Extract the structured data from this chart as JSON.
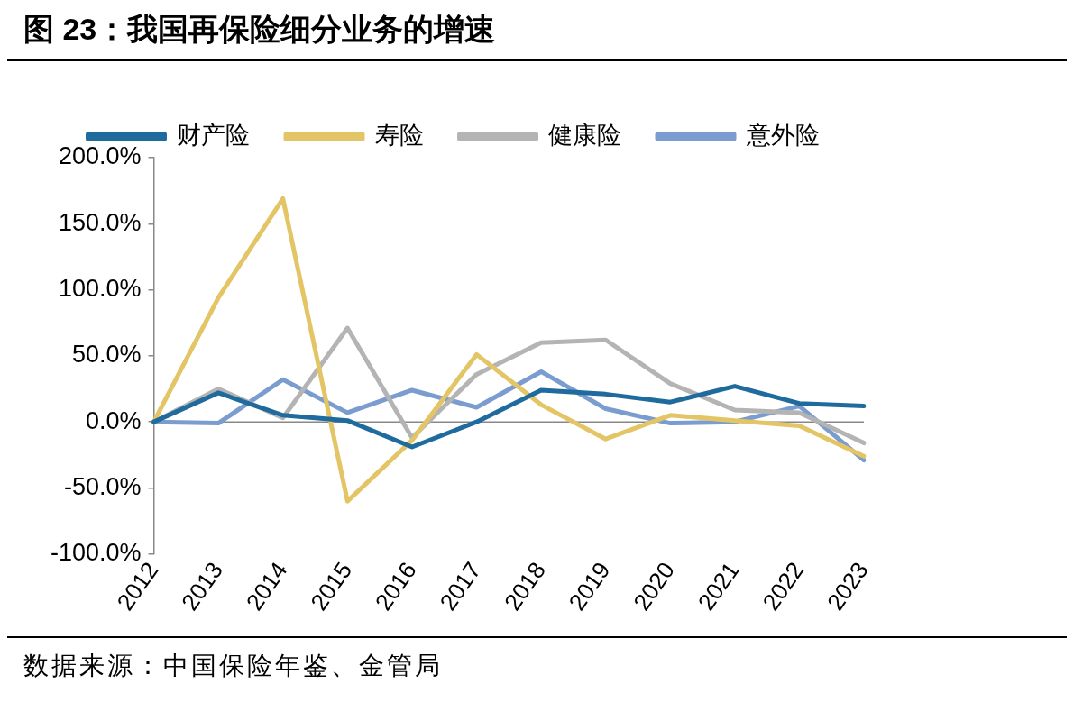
{
  "chart_data": {
    "type": "line",
    "title": "图 23：我国再保险细分业务的增速",
    "categories": [
      "2012",
      "2013",
      "2014",
      "2015",
      "2016",
      "2017",
      "2018",
      "2019",
      "2020",
      "2021",
      "2022",
      "2023"
    ],
    "series": [
      {
        "name": "财产险",
        "color": "#1f6b9e",
        "values": [
          0,
          22,
          5,
          1,
          -19,
          0,
          24,
          21,
          15,
          27,
          14,
          12
        ]
      },
      {
        "name": "寿险",
        "color": "#e3c565",
        "values": [
          0,
          94,
          169,
          -60,
          -14,
          51,
          13,
          -13,
          5,
          1,
          -3,
          -26
        ]
      },
      {
        "name": "健康险",
        "color": "#b4b4b4",
        "values": [
          0,
          25,
          3,
          71,
          -12,
          36,
          60,
          62,
          29,
          9,
          7,
          -16
        ]
      },
      {
        "name": "意外险",
        "color": "#7b9ccf",
        "values": [
          0,
          -1,
          32,
          7,
          24,
          11,
          38,
          10,
          -1,
          0,
          12,
          -29
        ]
      }
    ],
    "ylim": [
      -100,
      200
    ],
    "yticks": [
      {
        "value": -100,
        "label": "-100.0%"
      },
      {
        "value": -50,
        "label": "-50.0%"
      },
      {
        "value": 0,
        "label": "0.0%"
      },
      {
        "value": 50,
        "label": "50.0%"
      },
      {
        "value": 100,
        "label": "100.0%"
      },
      {
        "value": 150,
        "label": "150.0%"
      },
      {
        "value": 200,
        "label": "200.0%"
      }
    ],
    "ref_lines": [
      {
        "axis": "y",
        "value": 0,
        "color": "#888888"
      }
    ],
    "grid": false,
    "legend": "top",
    "marker": "none",
    "line_style": "solid",
    "annotations": [
      "数据来源：中国保险年鉴、金管局"
    ]
  }
}
